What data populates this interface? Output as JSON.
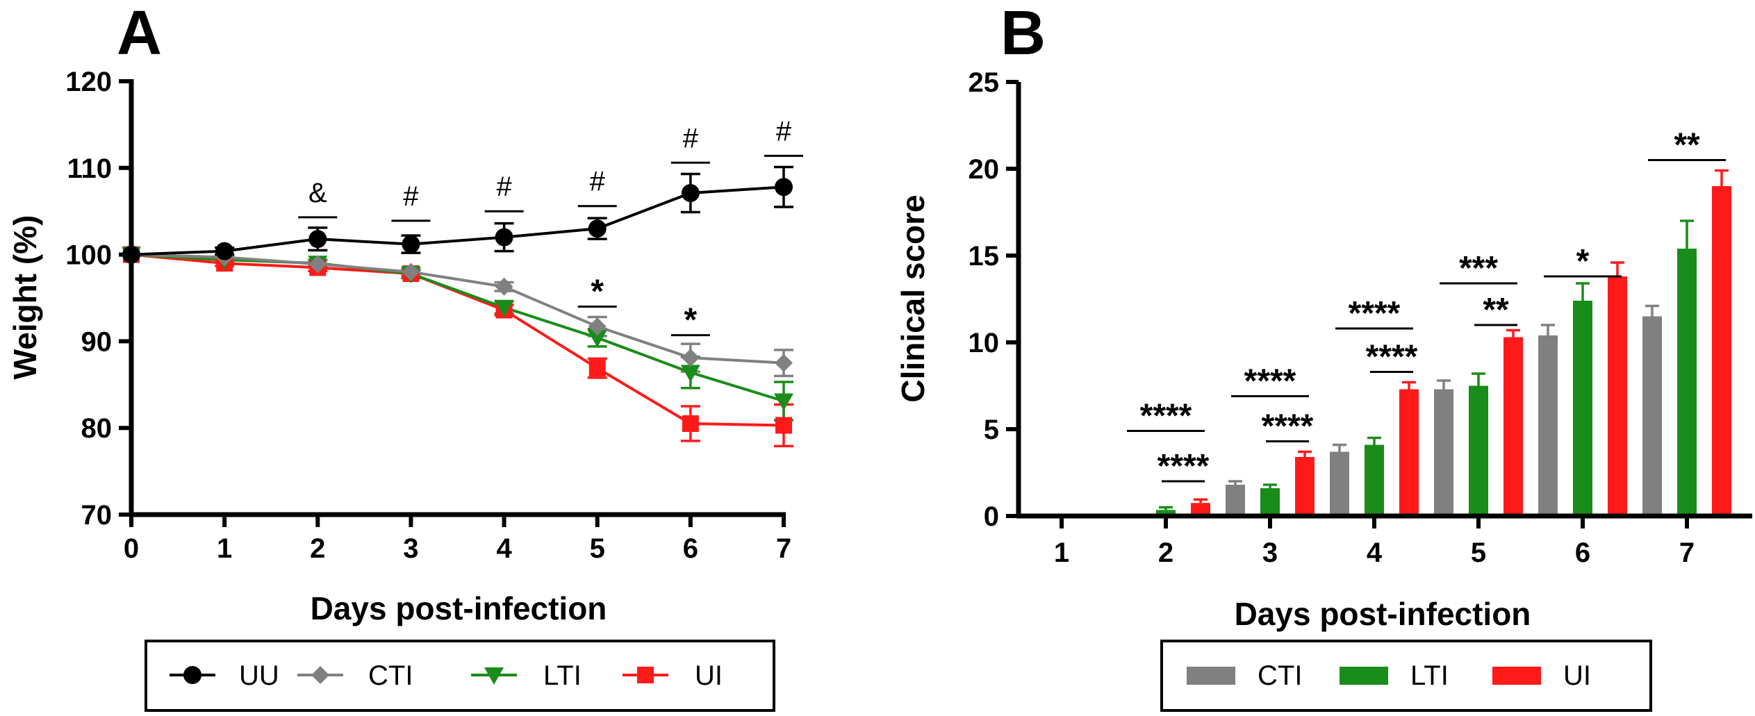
{
  "colors": {
    "UU": "#000000",
    "CTI": "#808080",
    "LTI": "#1a8c1a",
    "UI": "#ff1a1a"
  },
  "chart_data": [
    {
      "panel": "A",
      "type": "line",
      "xlabel": "Days post-infection",
      "ylabel": "Weight (%)",
      "xlim": [
        0,
        7
      ],
      "ylim": [
        70,
        120
      ],
      "xticks": [
        "0",
        "1",
        "2",
        "3",
        "4",
        "5",
        "6",
        "7"
      ],
      "yticks": [
        "70",
        "80",
        "90",
        "100",
        "110",
        "120"
      ],
      "x": [
        0,
        1,
        2,
        3,
        4,
        5,
        6,
        7
      ],
      "series": [
        {
          "name": "UU",
          "marker": "circle",
          "values": [
            100,
            100.4,
            101.8,
            101.2,
            102.0,
            103.0,
            107.1,
            107.8
          ],
          "errors": [
            0,
            0.4,
            1.3,
            1.0,
            1.6,
            1.2,
            2.2,
            2.3
          ]
        },
        {
          "name": "CTI",
          "marker": "diamond",
          "values": [
            100,
            99.7,
            98.9,
            98.0,
            96.3,
            91.7,
            88.1,
            87.5
          ],
          "errors": [
            0,
            0.3,
            0.4,
            0.4,
            0.5,
            1.1,
            1.6,
            1.5
          ]
        },
        {
          "name": "LTI",
          "marker": "triangle-down",
          "values": [
            100,
            99.4,
            99.0,
            97.8,
            93.9,
            90.4,
            86.4,
            83.1
          ],
          "errors": [
            0,
            0.3,
            0.4,
            0.4,
            0.7,
            1.0,
            1.8,
            2.2
          ]
        },
        {
          "name": "UI",
          "marker": "square",
          "values": [
            100,
            99.0,
            98.5,
            97.8,
            93.6,
            86.9,
            80.5,
            80.3
          ],
          "errors": [
            0,
            0.3,
            0.4,
            0.5,
            0.6,
            1.1,
            2.0,
            2.4
          ]
        }
      ],
      "annotations": [
        {
          "x": 2,
          "y": 104.3,
          "symbol": "&",
          "style": "plain"
        },
        {
          "x": 3,
          "y": 103.9,
          "symbol": "#",
          "style": "plain"
        },
        {
          "x": 4,
          "y": 105.0,
          "symbol": "#",
          "style": "plain"
        },
        {
          "x": 5,
          "y": 105.6,
          "symbol": "#",
          "style": "plain"
        },
        {
          "x": 6,
          "y": 110.6,
          "symbol": "#",
          "style": "plain"
        },
        {
          "x": 7,
          "y": 111.4,
          "symbol": "#",
          "style": "plain"
        },
        {
          "x": 5,
          "y": 94.0,
          "symbol": "*",
          "style": "bold"
        },
        {
          "x": 6,
          "y": 90.7,
          "symbol": "*",
          "style": "bold"
        }
      ],
      "legend": {
        "position": "bottom",
        "entries": [
          "UU",
          "CTI",
          "LTI",
          "UI"
        ]
      }
    },
    {
      "panel": "B",
      "type": "bar",
      "xlabel": "Days post-infection",
      "ylabel": "Clinical score",
      "categories": [
        "1",
        "2",
        "3",
        "4",
        "5",
        "6",
        "7"
      ],
      "ylim": [
        0,
        25
      ],
      "yticks": [
        "0",
        "5",
        "10",
        "15",
        "20",
        "25"
      ],
      "series": [
        {
          "name": "CTI",
          "values": [
            0,
            0,
            1.8,
            3.7,
            7.3,
            10.4,
            11.5
          ],
          "errors": [
            0,
            0,
            0.2,
            0.4,
            0.5,
            0.6,
            0.6
          ]
        },
        {
          "name": "LTI",
          "values": [
            0,
            0.35,
            1.6,
            4.1,
            7.5,
            12.4,
            15.4
          ],
          "errors": [
            0,
            0.15,
            0.2,
            0.4,
            0.7,
            1.0,
            1.6
          ]
        },
        {
          "name": "UI",
          "values": [
            0,
            0.75,
            3.4,
            7.3,
            10.3,
            13.8,
            19.0
          ],
          "errors": [
            0,
            0.2,
            0.3,
            0.4,
            0.4,
            0.8,
            0.9
          ]
        }
      ],
      "comparisons": [
        {
          "day": 2,
          "from": "LTI",
          "to": "UI",
          "y": 2.0,
          "label": "****"
        },
        {
          "day": 2,
          "from": "CTI",
          "to": "UI",
          "y": 4.9,
          "label": "****"
        },
        {
          "day": 3,
          "from": "LTI",
          "to": "UI",
          "y": 4.3,
          "label": "****"
        },
        {
          "day": 3,
          "from": "CTI",
          "to": "UI",
          "y": 6.9,
          "label": "****"
        },
        {
          "day": 4,
          "from": "LTI",
          "to": "UI",
          "y": 8.3,
          "label": "****"
        },
        {
          "day": 4,
          "from": "CTI",
          "to": "UI",
          "y": 10.8,
          "label": "****"
        },
        {
          "day": 5,
          "from": "LTI",
          "to": "UI",
          "y": 11.0,
          "label": "**"
        },
        {
          "day": 5,
          "from": "CTI",
          "to": "UI",
          "y": 13.4,
          "label": "***"
        },
        {
          "day": 6,
          "from": "CTI",
          "to": "UI",
          "y": 13.8,
          "label": "*"
        },
        {
          "day": 7,
          "from": "CTI",
          "to": "UI",
          "y": 20.5,
          "label": "**"
        }
      ],
      "legend": {
        "position": "bottom",
        "entries": [
          "CTI",
          "LTI",
          "UI"
        ]
      }
    }
  ]
}
